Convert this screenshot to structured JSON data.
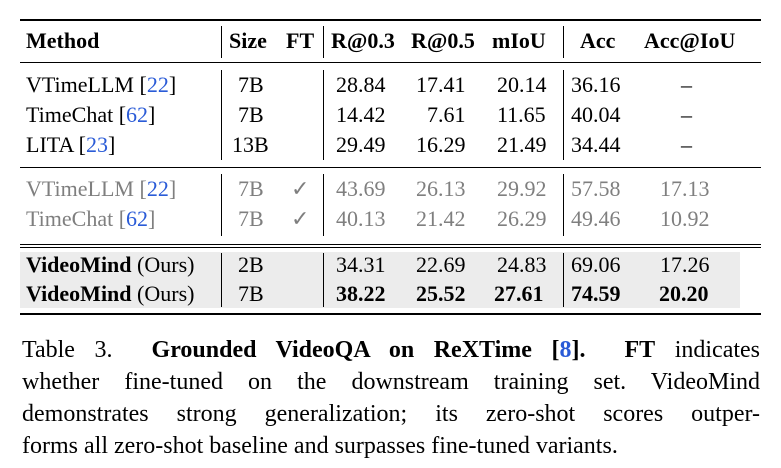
{
  "table": {
    "columns": [
      "Method",
      "Size",
      "FT",
      "R@0.3",
      "R@0.5",
      "mIoU",
      "Acc",
      "Acc@IoU"
    ],
    "group1": [
      {
        "method": "VTimeLLM",
        "cite": "22",
        "size": "7B",
        "ft": "",
        "r03": "28.84",
        "r05": "17.41",
        "miou": "20.14",
        "acc": "36.16",
        "acc_iou": "–"
      },
      {
        "method": "TimeChat",
        "cite": "62",
        "size": "7B",
        "ft": "",
        "r03": "14.42",
        "r05": "7.61",
        "miou": "11.65",
        "acc": "40.04",
        "acc_iou": "–"
      },
      {
        "method": "LITA",
        "cite": "23",
        "size": "13B",
        "ft": "",
        "r03": "29.49",
        "r05": "16.29",
        "miou": "21.49",
        "acc": "34.44",
        "acc_iou": "–"
      }
    ],
    "group2": [
      {
        "method": "VTimeLLM",
        "cite": "22",
        "size": "7B",
        "ft": "✓",
        "r03": "43.69",
        "r05": "26.13",
        "miou": "29.92",
        "acc": "57.58",
        "acc_iou": "17.13"
      },
      {
        "method": "TimeChat",
        "cite": "62",
        "size": "7B",
        "ft": "✓",
        "r03": "40.13",
        "r05": "21.42",
        "miou": "26.29",
        "acc": "49.46",
        "acc_iou": "10.92"
      }
    ],
    "group3": [
      {
        "method": "VideoMind",
        "suffix": "(Ours)",
        "size": "2B",
        "ft": "",
        "r03": "34.31",
        "r05": "22.69",
        "miou": "24.83",
        "acc": "69.06",
        "acc_iou": "17.26"
      },
      {
        "method": "VideoMind",
        "suffix": "(Ours)",
        "size": "7B",
        "ft": "",
        "r03": "38.22",
        "r05": "25.52",
        "miou": "27.61",
        "acc": "74.59",
        "acc_iou": "20.20"
      }
    ]
  },
  "caption": {
    "label": "Table 3.",
    "title_a": "Grounded VideoQA on ReXTime [",
    "title_cite": "8",
    "title_b": "].",
    "ft_term": "FT",
    "line1_rest": "indicates",
    "line2": "whether fine-tuned on the downstream training set. VideoMind",
    "line3": "demonstrates strong generalization; its zero-shot scores outper-",
    "line4": "forms all zero-shot baseline and surpasses fine-tuned variants."
  }
}
